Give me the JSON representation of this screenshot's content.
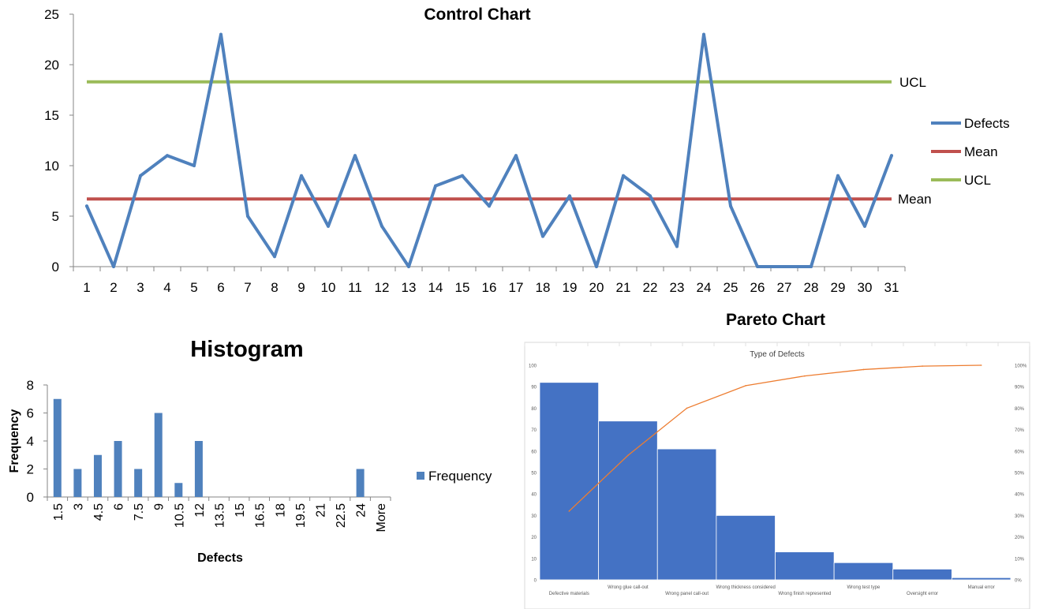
{
  "chart_data": [
    {
      "type": "line",
      "title": "Control Chart",
      "xlabel": "",
      "ylabel": "",
      "x": [
        1,
        2,
        3,
        4,
        5,
        6,
        7,
        8,
        9,
        10,
        11,
        12,
        13,
        14,
        15,
        16,
        17,
        18,
        19,
        20,
        21,
        22,
        23,
        24,
        25,
        26,
        27,
        28,
        29,
        30,
        31
      ],
      "ylim": [
        0,
        25
      ],
      "yticks": [
        0,
        5,
        10,
        15,
        20,
        25
      ],
      "grid": false,
      "legend": "right",
      "series": [
        {
          "name": "Defects",
          "color": "#4F81BD",
          "values": [
            6,
            0,
            9,
            11,
            10,
            23,
            5,
            1,
            9,
            4,
            11,
            4,
            0,
            8,
            9,
            6,
            11,
            3,
            7,
            0,
            9,
            7,
            2,
            23,
            6,
            0,
            0,
            0,
            9,
            4,
            11
          ]
        },
        {
          "name": "Mean",
          "color": "#C0504D",
          "value": 6.7,
          "label": "Mean"
        },
        {
          "name": "UCL",
          "color": "#9BBB59",
          "value": 18.3,
          "label": "UCL"
        }
      ]
    },
    {
      "type": "bar",
      "title": "Histogram",
      "xlabel": "Defects",
      "ylabel": "Frequency",
      "categories": [
        "1.5",
        "3",
        "4.5",
        "6",
        "7.5",
        "9",
        "10.5",
        "12",
        "13.5",
        "15",
        "16.5",
        "18",
        "19.5",
        "21",
        "22.5",
        "24",
        "More"
      ],
      "ylim": [
        0,
        8
      ],
      "yticks": [
        0,
        2,
        4,
        6,
        8
      ],
      "legend": "right",
      "series": [
        {
          "name": "Frequency",
          "color": "#4F81BD",
          "values": [
            7,
            2,
            3,
            4,
            2,
            6,
            1,
            4,
            0,
            0,
            0,
            0,
            0,
            0,
            0,
            2,
            0
          ]
        }
      ]
    },
    {
      "type": "bar",
      "title": "Pareto Chart",
      "subtitle": "Type of Defects",
      "categories": [
        "Defective materials",
        "Wrong glue call-out",
        "Wrong panel call-out",
        "Wrong thickness considered",
        "Wrong finish represented",
        "Wrong test type",
        "Oversight error",
        "Manual error"
      ],
      "ylim": [
        0,
        100
      ],
      "yticks": [
        0,
        10,
        20,
        30,
        40,
        50,
        60,
        70,
        80,
        90,
        100
      ],
      "y2ticks": [
        "0%",
        "10%",
        "20%",
        "30%",
        "40%",
        "50%",
        "60%",
        "70%",
        "80%",
        "90%",
        "100%"
      ],
      "bar_color": "#4472C4",
      "line_color": "#ED7D31",
      "values": [
        92,
        74,
        61,
        30,
        13,
        8,
        5,
        1
      ],
      "cumulative_percent": [
        32,
        58,
        80,
        90.5,
        95,
        98,
        99.6,
        100
      ]
    }
  ]
}
